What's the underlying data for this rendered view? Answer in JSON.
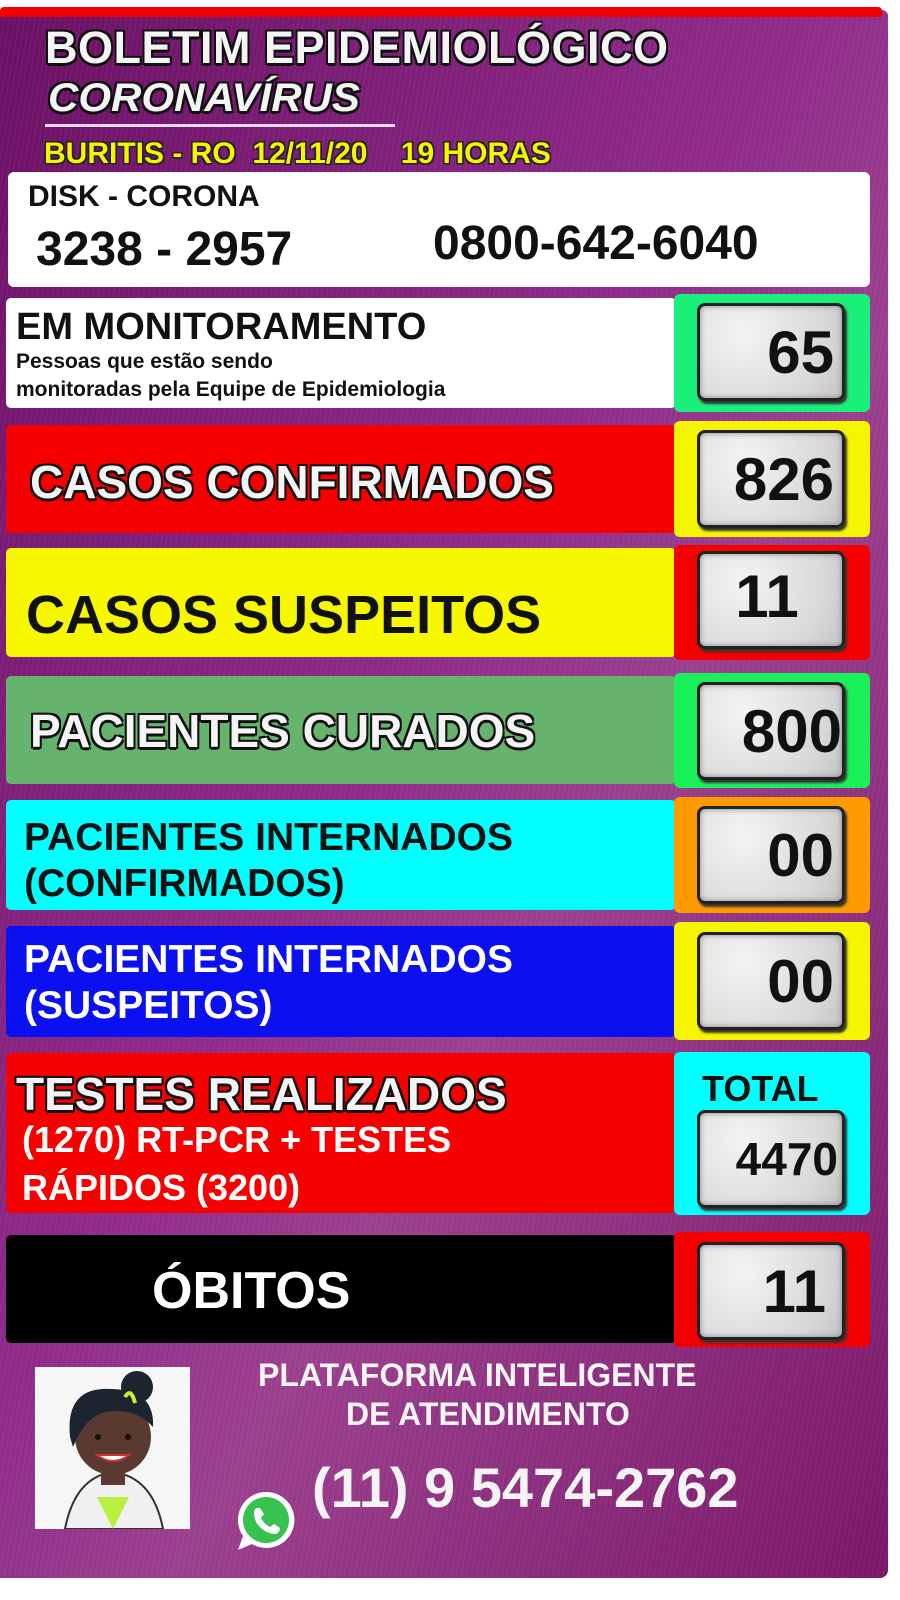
{
  "header": {
    "title": "BOLETIM EPIDEMIOLÓGICO",
    "subtitle": "CORONAVÍRUS",
    "location_line": "BURITIS - RO  12/11/20    19 HORAS"
  },
  "disk": {
    "label": "DISK - CORONA",
    "phone1": "3238 - 2957",
    "phone2": "0800-642-6040"
  },
  "stats": [
    {
      "label": "EM MONITORAMENTO",
      "desc1": "Pessoas que estão sendo",
      "desc2": "monitoradas pela Equipe de Epidemiologia",
      "value": "65",
      "bg": "#ffffff",
      "box": "#19f07a"
    },
    {
      "label": "CASOS CONFIRMADOS",
      "value": "826",
      "bg": "#f70000",
      "box": "#f5f500"
    },
    {
      "label": "CASOS SUSPEITOS",
      "value": "11",
      "bg": "#f7f700",
      "box": "#f50000"
    },
    {
      "label": "PACIENTES CURADOS",
      "value": "800",
      "bg": "#66b36e",
      "box": "#19f05a"
    },
    {
      "label1": "PACIENTES INTERNADOS",
      "label2": "(CONFIRMADOS)",
      "value": "00",
      "bg": "#00ffff",
      "box": "#ff9a00"
    },
    {
      "label1": "PACIENTES INTERNADOS",
      "label2": "(SUSPEITOS)",
      "value": "00",
      "bg": "#0a10f0",
      "box": "#f5f500"
    },
    {
      "label": "TESTES REALIZADOS",
      "desc1": "(1270) RT-PCR + TESTES",
      "desc2": "RÁPIDOS (3200)",
      "total_label": "TOTAL",
      "value": "4470",
      "bg": "#f70000",
      "box": "#00ffff"
    },
    {
      "label": "ÓBITOS",
      "value": "11",
      "bg": "#000000",
      "box": "#f50000"
    }
  ],
  "footer": {
    "line1": "PLATAFORMA INTELIGENTE",
    "line2": "DE ATENDIMENTO",
    "whatsapp": "(11) 9 5474-2762",
    "icon": "whatsapp-icon"
  }
}
